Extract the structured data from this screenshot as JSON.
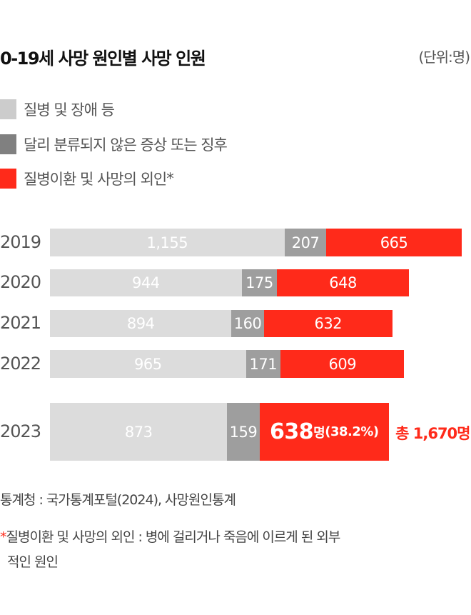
{
  "title": "0-19세 사망 원인별 사망 인원",
  "unit": "(단위:명)",
  "colors": {
    "disease": "#dcdcdc",
    "unclassified": "#9e9e9e",
    "external": "#ff2a1a",
    "legend_disease": "#cccccc",
    "legend_unclassified": "#808080"
  },
  "legend": [
    "질병 및 장애 등",
    "달리 분류되지 않은 증상 또는 징후",
    "질병이환 및 사망의 외인"
  ],
  "legend_asterisk": "*",
  "chart_data": {
    "type": "bar",
    "orientation": "horizontal",
    "stacked": true,
    "title": "0-19세 사망 원인별 사망 인원",
    "categories": [
      "2019",
      "2020",
      "2021",
      "2022",
      "2023"
    ],
    "series": [
      {
        "name": "질병 및 장애 등",
        "values": [
          1155,
          944,
          894,
          965,
          873
        ],
        "labels": [
          "1,155",
          "944",
          "894",
          "965",
          "873"
        ]
      },
      {
        "name": "달리 분류되지 않은 증상 또는 징후",
        "values": [
          207,
          175,
          160,
          171,
          159
        ],
        "labels": [
          "207",
          "175",
          "160",
          "171",
          "159"
        ]
      },
      {
        "name": "질병이환 및 사망의 외인",
        "values": [
          665,
          648,
          632,
          609,
          638
        ],
        "labels": [
          "665",
          "648",
          "632",
          "609",
          "638"
        ]
      }
    ],
    "highlight": {
      "value": "638",
      "suffix": "명",
      "pct": "(38.2%)",
      "total": "총 1,670명"
    }
  },
  "notes": {
    "source": "통계청 : 국가통계포털(2024), 사망원인통계",
    "footnote_mark": "*",
    "footnote": "질병이환 및 사망의 외인 : 병에 걸리거나 죽음에 이르게 된 외부",
    "footnote2": "적인 원인"
  }
}
